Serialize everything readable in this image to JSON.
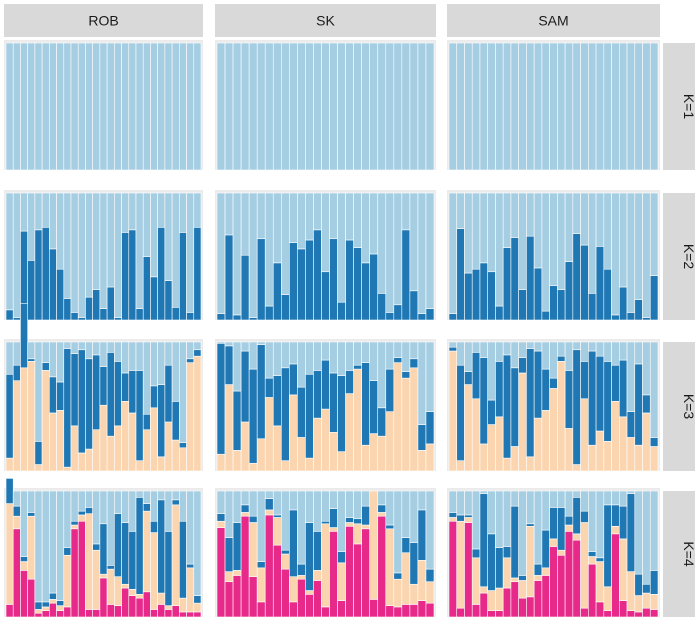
{
  "colors": {
    "k1": "#a6cee3",
    "k2": "#1f78b4",
    "k3": "#fbd5b0",
    "k4": "#e7298a",
    "strip": "#d9d9d9",
    "panel_bg": "#ebebeb",
    "bar_outline": "#ffffff"
  },
  "chart_data": {
    "type": "bar",
    "stacked": true,
    "facet_columns": [
      "ROB",
      "SK",
      "SAM"
    ],
    "facet_rows": [
      "K=1",
      "K=2",
      "K=3",
      "K=4"
    ],
    "ylim": [
      0,
      1
    ],
    "n_individuals_per_population": 27,
    "component_order": [
      "k4",
      "k3",
      "k2",
      "k1"
    ],
    "panels": {
      "K=1": {
        "ROB": {
          "k1": [
            1,
            1,
            1,
            1,
            1,
            1,
            1,
            1,
            1,
            1,
            1,
            1,
            1,
            1,
            1,
            1,
            1,
            1,
            1,
            1,
            1,
            1,
            1,
            1,
            1,
            1,
            1
          ]
        },
        "SK": {
          "k1": [
            1,
            1,
            1,
            1,
            1,
            1,
            1,
            1,
            1,
            1,
            1,
            1,
            1,
            1,
            1,
            1,
            1,
            1,
            1,
            1,
            1,
            1,
            1,
            1,
            1,
            1,
            1
          ]
        },
        "SAM": {
          "k1": [
            1,
            1,
            1,
            1,
            1,
            1,
            1,
            1,
            1,
            1,
            1,
            1,
            1,
            1,
            1,
            1,
            1,
            1,
            1,
            1,
            1,
            1,
            1,
            1,
            1,
            1,
            1
          ]
        }
      },
      "K=2": {
        "ROB": {
          "k2": [
            0.08,
            0.02,
            0.7,
            0.47,
            0.71,
            0.73,
            0.56,
            0.4,
            0.17,
            0.06,
            0.02,
            0.18,
            0.24,
            0.09,
            0.26,
            0.02,
            0.69,
            0.71,
            0.09,
            0.5,
            0.34,
            0.73,
            0.31,
            0.1,
            0.69,
            0.06,
            0.73
          ]
        },
        "SK": {
          "k2": [
            0.05,
            0.67,
            0.04,
            0.51,
            0.02,
            0.64,
            0.11,
            0.45,
            0.2,
            0.61,
            0.56,
            0.63,
            0.71,
            0.38,
            0.64,
            0.14,
            0.63,
            0.57,
            0.45,
            0.52,
            0.21,
            0.06,
            0.12,
            0.71,
            0.23,
            0.05,
            0.09
          ]
        },
        "SAM": {
          "k2": [
            0.05,
            0.72,
            0.37,
            0.4,
            0.45,
            0.38,
            0.11,
            0.57,
            0.65,
            0.24,
            0.66,
            0.41,
            0.07,
            0.27,
            0.24,
            0.46,
            0.68,
            0.59,
            0.21,
            0.58,
            0.4,
            0.04,
            0.26,
            0.06,
            0.16,
            0.02,
            0.35
          ]
        }
      },
      "K=3": {
        "ROB": {
          "k3": [
            0.1,
            0.7,
            0.8,
            0.85,
            0.05,
            0.78,
            0.45,
            0.47,
            0.03,
            0.35,
            0.14,
            0.17,
            0.32,
            0.51,
            0.27,
            0.35,
            0.54,
            0.45,
            0.08,
            0.32,
            0.49,
            0.11,
            0.38,
            0.24,
            0.18,
            0.84,
            0.89
          ],
          "k2": [
            0.65,
            0.12,
            0.5,
            0.02,
            0.18,
            0.06,
            0.28,
            0.22,
            0.92,
            0.56,
            0.8,
            0.7,
            0.58,
            0.3,
            0.65,
            0.5,
            0.22,
            0.33,
            0.7,
            0.12,
            0.17,
            0.56,
            0.44,
            0.3,
            0.04,
            0.03,
            0.05
          ]
        },
        "SK": {
          "k3": [
            0.13,
            0.67,
            0.16,
            0.38,
            0.06,
            0.25,
            0.57,
            0.35,
            0.08,
            0.59,
            0.26,
            0.1,
            0.41,
            0.48,
            0.3,
            0.15,
            0.6,
            0.79,
            0.2,
            0.29,
            0.27,
            0.46,
            0.84,
            0.72,
            0.8,
            0.16,
            0.21
          ],
          "k2": [
            0.86,
            0.3,
            0.46,
            0.55,
            0.73,
            0.73,
            0.15,
            0.39,
            0.72,
            0.24,
            0.39,
            0.65,
            0.37,
            0.38,
            0.46,
            0.59,
            0.18,
            0.03,
            0.64,
            0.41,
            0.22,
            0.33,
            0.04,
            0.05,
            0.07,
            0.2,
            0.25
          ]
        },
        "SAM": {
          "k3": [
            0.93,
            0.08,
            0.67,
            0.56,
            0.21,
            0.36,
            0.42,
            0.1,
            0.19,
            0.76,
            0.11,
            0.41,
            0.47,
            0.64,
            0.85,
            0.33,
            0.05,
            0.56,
            0.2,
            0.31,
            0.23,
            0.54,
            0.42,
            0.26,
            0.2,
            0.45,
            0.19
          ],
          "k2": [
            0.03,
            0.74,
            0.1,
            0.36,
            0.67,
            0.19,
            0.43,
            0.8,
            0.61,
            0.12,
            0.84,
            0.52,
            0.32,
            0.08,
            0.04,
            0.45,
            0.89,
            0.29,
            0.73,
            0.58,
            0.62,
            0.28,
            0.44,
            0.2,
            0.63,
            0.14,
            0.07
          ]
        }
      },
      "K=4": {
        "ROB": {
          "k4": [
            0.1,
            0.7,
            0.37,
            0.3,
            0.03,
            0.05,
            0.11,
            0.05,
            0.08,
            0.7,
            0.76,
            0.06,
            0.06,
            0.31,
            0.1,
            0.09,
            0.23,
            0.17,
            0.15,
            0.2,
            0.06,
            0.1,
            0.06,
            0.09,
            0.04,
            0.04,
            0.04
          ],
          "k3": [
            0.8,
            0.1,
            0.07,
            0.5,
            0.03,
            0.03,
            0.03,
            0.04,
            0.41,
            0.03,
            0.05,
            0.76,
            0.47,
            0.03,
            0.28,
            0.23,
            0.03,
            0.05,
            0.03,
            0.64,
            0.61,
            0.09,
            0.03,
            0.8,
            0.11,
            0.35,
            0.07
          ],
          "k2": [
            0.2,
            0.08,
            0.04,
            0.03,
            0.06,
            0.04,
            0.05,
            0.04,
            0.06,
            0.03,
            0.03,
            0.05,
            0.05,
            0.4,
            0.03,
            0.5,
            0.49,
            0.46,
            0.77,
            0.06,
            0.09,
            0.74,
            0.59,
            0.04,
            0.61,
            0.03,
            0.06
          ]
        },
        "SK": {
          "k4": [
            0.71,
            0.28,
            0.33,
            0.8,
            0.32,
            0.12,
            0.81,
            0.57,
            0.38,
            0.12,
            0.3,
            0.18,
            0.29,
            0.08,
            0.68,
            0.13,
            0.72,
            0.58,
            0.7,
            0.14,
            0.8,
            0.09,
            0.08,
            0.1,
            0.1,
            0.13,
            0.11
          ],
          "k3": [
            0.05,
            0.08,
            0.04,
            0.03,
            0.43,
            0.27,
            0.04,
            0.22,
            0.12,
            0.2,
            0.03,
            0.03,
            0.08,
            0.66,
            0.03,
            0.3,
            0.03,
            0.16,
            0.03,
            0.86,
            0.03,
            0.61,
            0.22,
            0.41,
            0.16,
            0.32,
            0.17
          ],
          "k2": [
            0.06,
            0.27,
            0.38,
            0.06,
            0.05,
            0.05,
            0.09,
            0.02,
            0.03,
            0.53,
            0.09,
            0.54,
            0.31,
            0.02,
            0.15,
            0.09,
            0.04,
            0.04,
            0.15,
            0.0,
            0.06,
            0.03,
            0.05,
            0.12,
            0.33,
            0.4,
            0.1
          ]
        },
        "SAM": {
          "k4": [
            0.76,
            0.07,
            0.75,
            0.1,
            0.19,
            0.05,
            0.05,
            0.23,
            0.28,
            0.15,
            0.16,
            0.29,
            0.33,
            0.56,
            0.49,
            0.68,
            0.61,
            0.07,
            0.42,
            0.12,
            0.05,
            0.66,
            0.13,
            0.05,
            0.04,
            0.07,
            0.06
          ],
          "k3": [
            0.03,
            0.69,
            0.04,
            0.37,
            0.05,
            0.16,
            0.18,
            0.24,
            0.03,
            0.14,
            0.56,
            0.04,
            0.06,
            0.06,
            0.04,
            0.05,
            0.05,
            0.68,
            0.06,
            0.32,
            0.19,
            0.06,
            0.49,
            0.31,
            0.13,
            0.12,
            0.12
          ],
          "k2": [
            0.04,
            0.05,
            0.02,
            0.07,
            0.74,
            0.45,
            0.32,
            0.09,
            0.57,
            0.04,
            0.02,
            0.09,
            0.3,
            0.25,
            0.34,
            0.07,
            0.29,
            0.09,
            0.04,
            0.03,
            0.65,
            0.17,
            0.26,
            0.62,
            0.17,
            0.07,
            0.19
          ]
        }
      }
    }
  }
}
